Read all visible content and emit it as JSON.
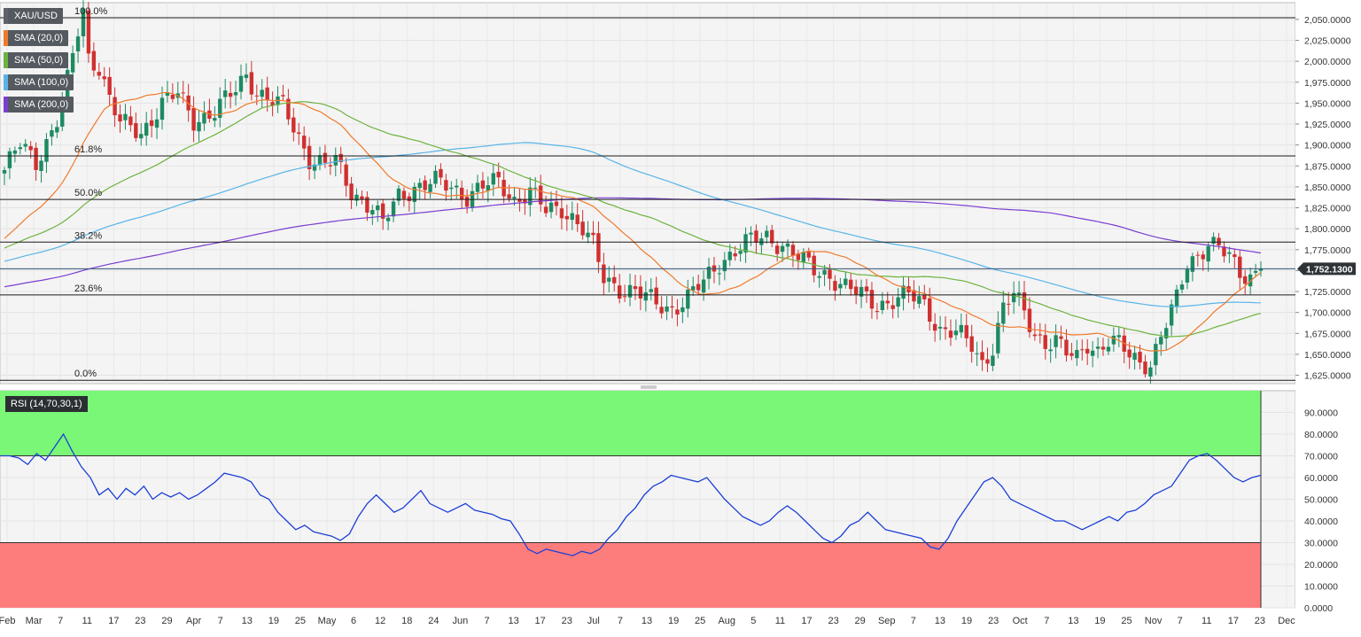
{
  "legend": {
    "symbol": "XAU/USD",
    "sma20": "SMA (20,0)",
    "sma50": "SMA (50,0)",
    "sma100": "SMA (100,0)",
    "sma200": "SMA (200,0)"
  },
  "colors": {
    "up": "#1d8a62",
    "down": "#d03030",
    "sma20": "#f07a2c",
    "sma50": "#6cb33f",
    "sma100": "#58b4e8",
    "sma200": "#7b3fd0",
    "rsi": "#1b3fd6",
    "overbought_zone": "#7af777",
    "oversold_zone": "#fd7c7c",
    "price_tag": "#2e3338",
    "symbol_tag": "#555a60"
  },
  "chart_data": {
    "type": "candlestick",
    "symbol": "XAU/USD",
    "current_price": 1752.13,
    "current_price_label": "1,752.1300",
    "ylim": [
      1615,
      2070
    ],
    "price_ticks": [
      "1,625.0000",
      "1,650.0000",
      "1,675.0000",
      "1,700.0000",
      "1,725.0000",
      "1,750.0000",
      "1,775.0000",
      "1,800.0000",
      "1,825.0000",
      "1,850.0000",
      "1,875.0000",
      "1,900.0000",
      "1,925.0000",
      "1,950.0000",
      "1,975.0000",
      "2,000.0000",
      "2,025.0000",
      "2,050.0000"
    ],
    "price_tick_values": [
      1625,
      1650,
      1675,
      1700,
      1725,
      1750,
      1775,
      1800,
      1825,
      1850,
      1875,
      1900,
      1925,
      1950,
      1975,
      2000,
      2025,
      2050
    ],
    "x_tick_labels": [
      "Feb",
      "Mar",
      "7",
      "11",
      "17",
      "23",
      "29",
      "Apr",
      "7",
      "13",
      "19",
      "25",
      "May",
      "6",
      "12",
      "18",
      "24",
      "Jun",
      "7",
      "13",
      "17",
      "23",
      "Jul",
      "7",
      "13",
      "19",
      "25",
      "Aug",
      "5",
      "11",
      "17",
      "23",
      "29",
      "Sep",
      "7",
      "13",
      "19",
      "23",
      "Oct",
      "7",
      "13",
      "19",
      "25",
      "Nov",
      "7",
      "11",
      "17",
      "23",
      "Dec"
    ],
    "fibonacci": [
      {
        "label": "100.0%",
        "value": 2052
      },
      {
        "label": "61.8%",
        "value": 1887
      },
      {
        "label": "50.0%",
        "value": 1835
      },
      {
        "label": "38.2%",
        "value": 1784
      },
      {
        "label": "23.6%",
        "value": 1721
      },
      {
        "label": "0.0%",
        "value": 1619
      }
    ],
    "anchors": [
      [
        0,
        1870
      ],
      [
        3,
        1900
      ],
      [
        6,
        1880
      ],
      [
        10,
        1930
      ],
      [
        12,
        1975
      ],
      [
        14,
        2035
      ],
      [
        15,
        2060
      ],
      [
        16,
        2005
      ],
      [
        18,
        1995
      ],
      [
        20,
        1955
      ],
      [
        22,
        1925
      ],
      [
        26,
        1915
      ],
      [
        30,
        1950
      ],
      [
        33,
        1960
      ],
      [
        36,
        1930
      ],
      [
        40,
        1940
      ],
      [
        44,
        1965
      ],
      [
        46,
        1985
      ],
      [
        48,
        1965
      ],
      [
        50,
        1955
      ],
      [
        53,
        1945
      ],
      [
        56,
        1910
      ],
      [
        58,
        1885
      ],
      [
        61,
        1875
      ],
      [
        63,
        1880
      ],
      [
        66,
        1845
      ],
      [
        70,
        1825
      ],
      [
        72,
        1805
      ],
      [
        75,
        1840
      ],
      [
        78,
        1850
      ],
      [
        82,
        1855
      ],
      [
        85,
        1850
      ],
      [
        88,
        1840
      ],
      [
        91,
        1850
      ],
      [
        94,
        1855
      ],
      [
        97,
        1835
      ],
      [
        100,
        1845
      ],
      [
        103,
        1820
      ],
      [
        106,
        1825
      ],
      [
        108,
        1815
      ],
      [
        110,
        1800
      ],
      [
        112,
        1778
      ],
      [
        114,
        1740
      ],
      [
        117,
        1730
      ],
      [
        120,
        1725
      ],
      [
        124,
        1710
      ],
      [
        127,
        1705
      ],
      [
        130,
        1718
      ],
      [
        133,
        1735
      ],
      [
        136,
        1760
      ],
      [
        139,
        1775
      ],
      [
        142,
        1785
      ],
      [
        145,
        1790
      ],
      [
        148,
        1782
      ],
      [
        151,
        1765
      ],
      [
        154,
        1750
      ],
      [
        157,
        1745
      ],
      [
        160,
        1730
      ],
      [
        163,
        1720
      ],
      [
        166,
        1710
      ],
      [
        169,
        1715
      ],
      [
        172,
        1720
      ],
      [
        175,
        1710
      ],
      [
        178,
        1680
      ],
      [
        181,
        1675
      ],
      [
        184,
        1660
      ],
      [
        186,
        1640
      ],
      [
        188,
        1660
      ],
      [
        190,
        1705
      ],
      [
        192,
        1720
      ],
      [
        194,
        1700
      ],
      [
        196,
        1675
      ],
      [
        198,
        1665
      ],
      [
        200,
        1665
      ],
      [
        202,
        1650
      ],
      [
        204,
        1645
      ],
      [
        206,
        1665
      ],
      [
        208,
        1655
      ],
      [
        210,
        1665
      ],
      [
        212,
        1660
      ],
      [
        214,
        1650
      ],
      [
        216,
        1642
      ],
      [
        218,
        1640
      ],
      [
        220,
        1670
      ],
      [
        222,
        1700
      ],
      [
        223,
        1715
      ],
      [
        225,
        1760
      ],
      [
        227,
        1770
      ],
      [
        229,
        1783
      ],
      [
        231,
        1775
      ],
      [
        233,
        1765
      ],
      [
        235,
        1748
      ],
      [
        237,
        1745
      ],
      [
        239,
        1752
      ]
    ],
    "rsi": {
      "label": "RSI (14,70,30,1)",
      "ylim": [
        0,
        100
      ],
      "overbought": 70,
      "oversold": 30,
      "ticks": [
        "0.0000",
        "10.0000",
        "20.0000",
        "30.0000",
        "40.0000",
        "50.0000",
        "60.0000",
        "70.0000",
        "80.0000",
        "90.0000"
      ],
      "tick_values": [
        0,
        10,
        20,
        30,
        40,
        50,
        60,
        70,
        80,
        90
      ],
      "values": [
        70,
        70,
        69,
        66,
        71,
        68,
        74,
        80,
        72,
        65,
        60,
        52,
        55,
        50,
        55,
        52,
        56,
        50,
        53,
        51,
        53,
        50,
        52,
        55,
        58,
        62,
        61,
        60,
        58,
        52,
        50,
        44,
        40,
        36,
        38,
        35,
        34,
        33,
        31,
        34,
        42,
        48,
        52,
        48,
        44,
        46,
        50,
        54,
        48,
        46,
        44,
        46,
        48,
        45,
        44,
        43,
        41,
        40,
        34,
        27,
        25,
        27,
        26,
        25,
        24,
        26,
        25,
        27,
        32,
        36,
        42,
        46,
        52,
        56,
        58,
        61,
        60,
        59,
        58,
        60,
        55,
        50,
        46,
        42,
        40,
        38,
        40,
        44,
        47,
        44,
        40,
        36,
        32,
        30,
        33,
        38,
        40,
        44,
        40,
        36,
        35,
        34,
        33,
        32,
        28,
        27,
        32,
        40,
        46,
        52,
        58,
        60,
        56,
        50,
        48,
        46,
        44,
        42,
        40,
        40,
        38,
        36,
        38,
        40,
        42,
        40,
        44,
        45,
        48,
        52,
        54,
        56,
        62,
        68,
        70,
        71,
        68,
        64,
        60,
        58,
        60,
        61
      ]
    }
  }
}
